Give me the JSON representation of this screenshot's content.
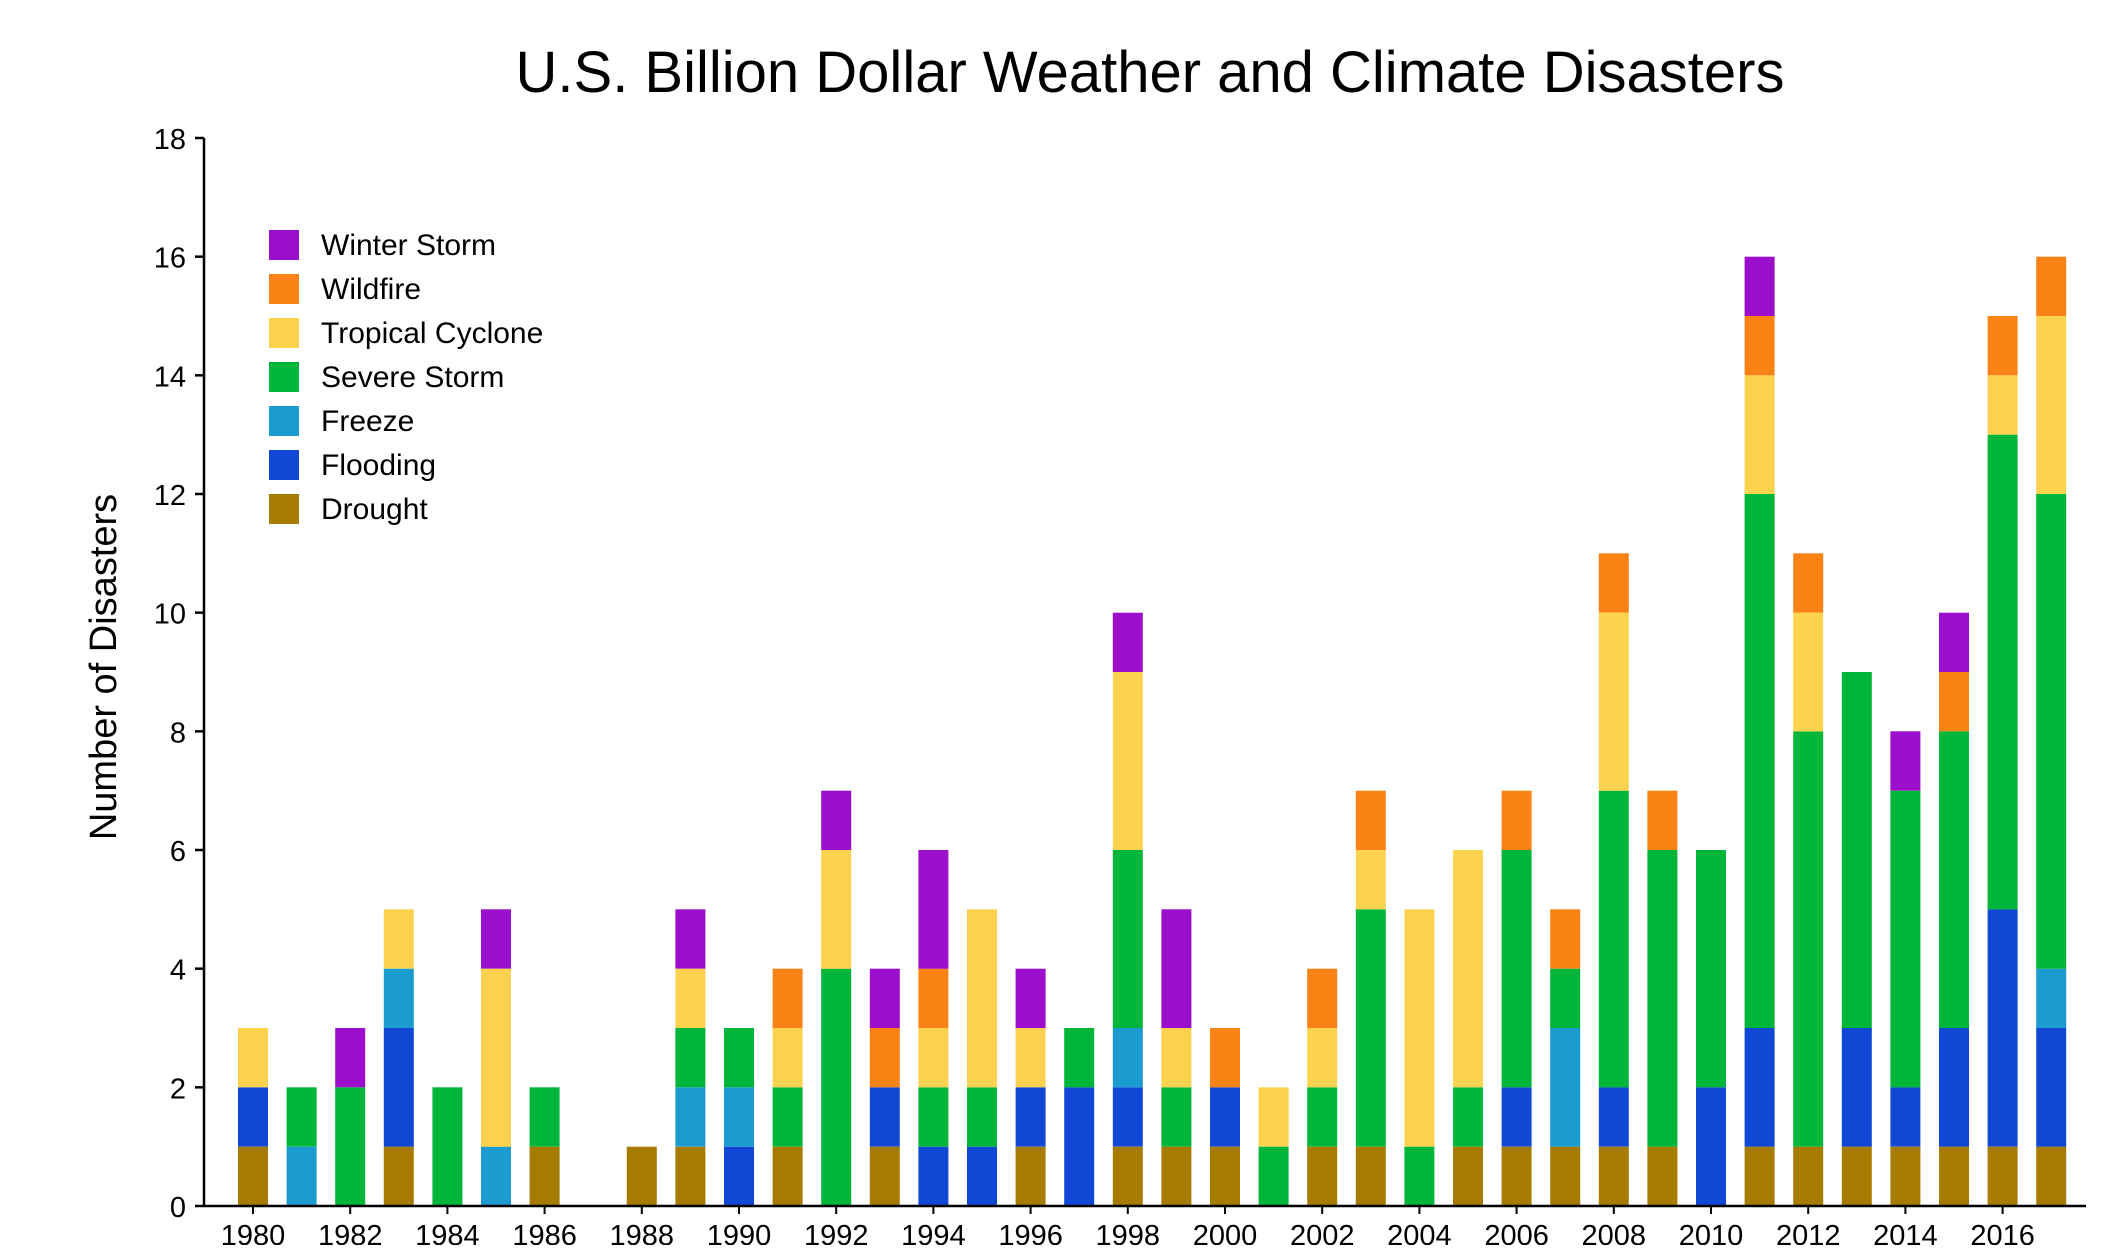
{
  "chart_data": {
    "type": "bar",
    "stacked": true,
    "title": "U.S. Billion Dollar Weather and Climate Disasters",
    "xlabel": "",
    "ylabel": "Number of Disasters",
    "ylim": [
      0,
      18
    ],
    "yticks": [
      0,
      2,
      4,
      6,
      8,
      10,
      12,
      14,
      16,
      18
    ],
    "grid": false,
    "legend_position": "top-left",
    "x_years": [
      1980,
      1981,
      1982,
      1983,
      1984,
      1985,
      1986,
      1987,
      1988,
      1989,
      1990,
      1991,
      1992,
      1993,
      1994,
      1995,
      1996,
      1997,
      1998,
      1999,
      2000,
      2001,
      2002,
      2003,
      2004,
      2005,
      2006,
      2007,
      2008,
      2009,
      2010,
      2011,
      2012,
      2013,
      2014,
      2015,
      2016,
      2017
    ],
    "x_tick_labels": [
      "1980",
      "1982",
      "1984",
      "1986",
      "1988",
      "1990",
      "1992",
      "1994",
      "1996",
      "1998",
      "2000",
      "2002",
      "2004",
      "2006",
      "2008",
      "2010",
      "2012",
      "2014",
      "2016"
    ],
    "series": [
      {
        "name": "Drought",
        "color": "#A67C00",
        "values": [
          1,
          0,
          0,
          1,
          0,
          0,
          1,
          0,
          1,
          1,
          0,
          1,
          0,
          1,
          0,
          0,
          1,
          0,
          1,
          1,
          1,
          0,
          1,
          1,
          0,
          1,
          1,
          1,
          1,
          1,
          0,
          1,
          1,
          1,
          1,
          1,
          1,
          1
        ]
      },
      {
        "name": "Flooding",
        "color": "#1047D4",
        "values": [
          1,
          0,
          0,
          2,
          0,
          0,
          0,
          0,
          0,
          0,
          1,
          0,
          0,
          1,
          1,
          1,
          1,
          2,
          1,
          0,
          1,
          0,
          0,
          0,
          0,
          0,
          1,
          0,
          1,
          0,
          2,
          2,
          0,
          2,
          1,
          2,
          4,
          2
        ]
      },
      {
        "name": "Freeze",
        "color": "#1B9BCF",
        "values": [
          0,
          1,
          0,
          1,
          0,
          1,
          0,
          0,
          0,
          1,
          1,
          0,
          0,
          0,
          0,
          0,
          0,
          0,
          1,
          0,
          0,
          0,
          0,
          0,
          0,
          0,
          0,
          2,
          0,
          0,
          0,
          0,
          0,
          0,
          0,
          0,
          0,
          1
        ]
      },
      {
        "name": "Severe Storm",
        "color": "#00B63A",
        "values": [
          0,
          1,
          2,
          0,
          2,
          0,
          1,
          0,
          0,
          1,
          1,
          1,
          4,
          0,
          1,
          1,
          0,
          1,
          3,
          1,
          0,
          1,
          1,
          4,
          1,
          1,
          4,
          1,
          5,
          5,
          4,
          9,
          7,
          6,
          5,
          5,
          8,
          8
        ]
      },
      {
        "name": "Tropical Cyclone",
        "color": "#FDD24F",
        "values": [
          1,
          0,
          0,
          1,
          0,
          3,
          0,
          0,
          0,
          1,
          0,
          1,
          2,
          0,
          1,
          3,
          1,
          0,
          3,
          1,
          0,
          1,
          1,
          1,
          4,
          4,
          0,
          0,
          3,
          0,
          0,
          2,
          2,
          0,
          0,
          0,
          1,
          3
        ]
      },
      {
        "name": "Wildfire",
        "color": "#FB8214",
        "values": [
          0,
          0,
          0,
          0,
          0,
          0,
          0,
          0,
          0,
          0,
          0,
          1,
          0,
          1,
          1,
          0,
          0,
          0,
          0,
          0,
          1,
          0,
          1,
          1,
          0,
          0,
          1,
          1,
          1,
          1,
          0,
          1,
          1,
          0,
          0,
          1,
          1,
          1
        ]
      },
      {
        "name": "Winter Storm",
        "color": "#9B0ECC",
        "values": [
          0,
          0,
          1,
          0,
          0,
          1,
          0,
          0,
          0,
          1,
          0,
          0,
          1,
          1,
          2,
          0,
          1,
          0,
          1,
          2,
          0,
          0,
          0,
          0,
          0,
          0,
          0,
          0,
          0,
          0,
          0,
          1,
          0,
          0,
          1,
          1,
          0,
          0
        ]
      }
    ],
    "legend_order": [
      "Winter Storm",
      "Wildfire",
      "Tropical Cyclone",
      "Severe Storm",
      "Freeze",
      "Flooding",
      "Drought"
    ]
  }
}
